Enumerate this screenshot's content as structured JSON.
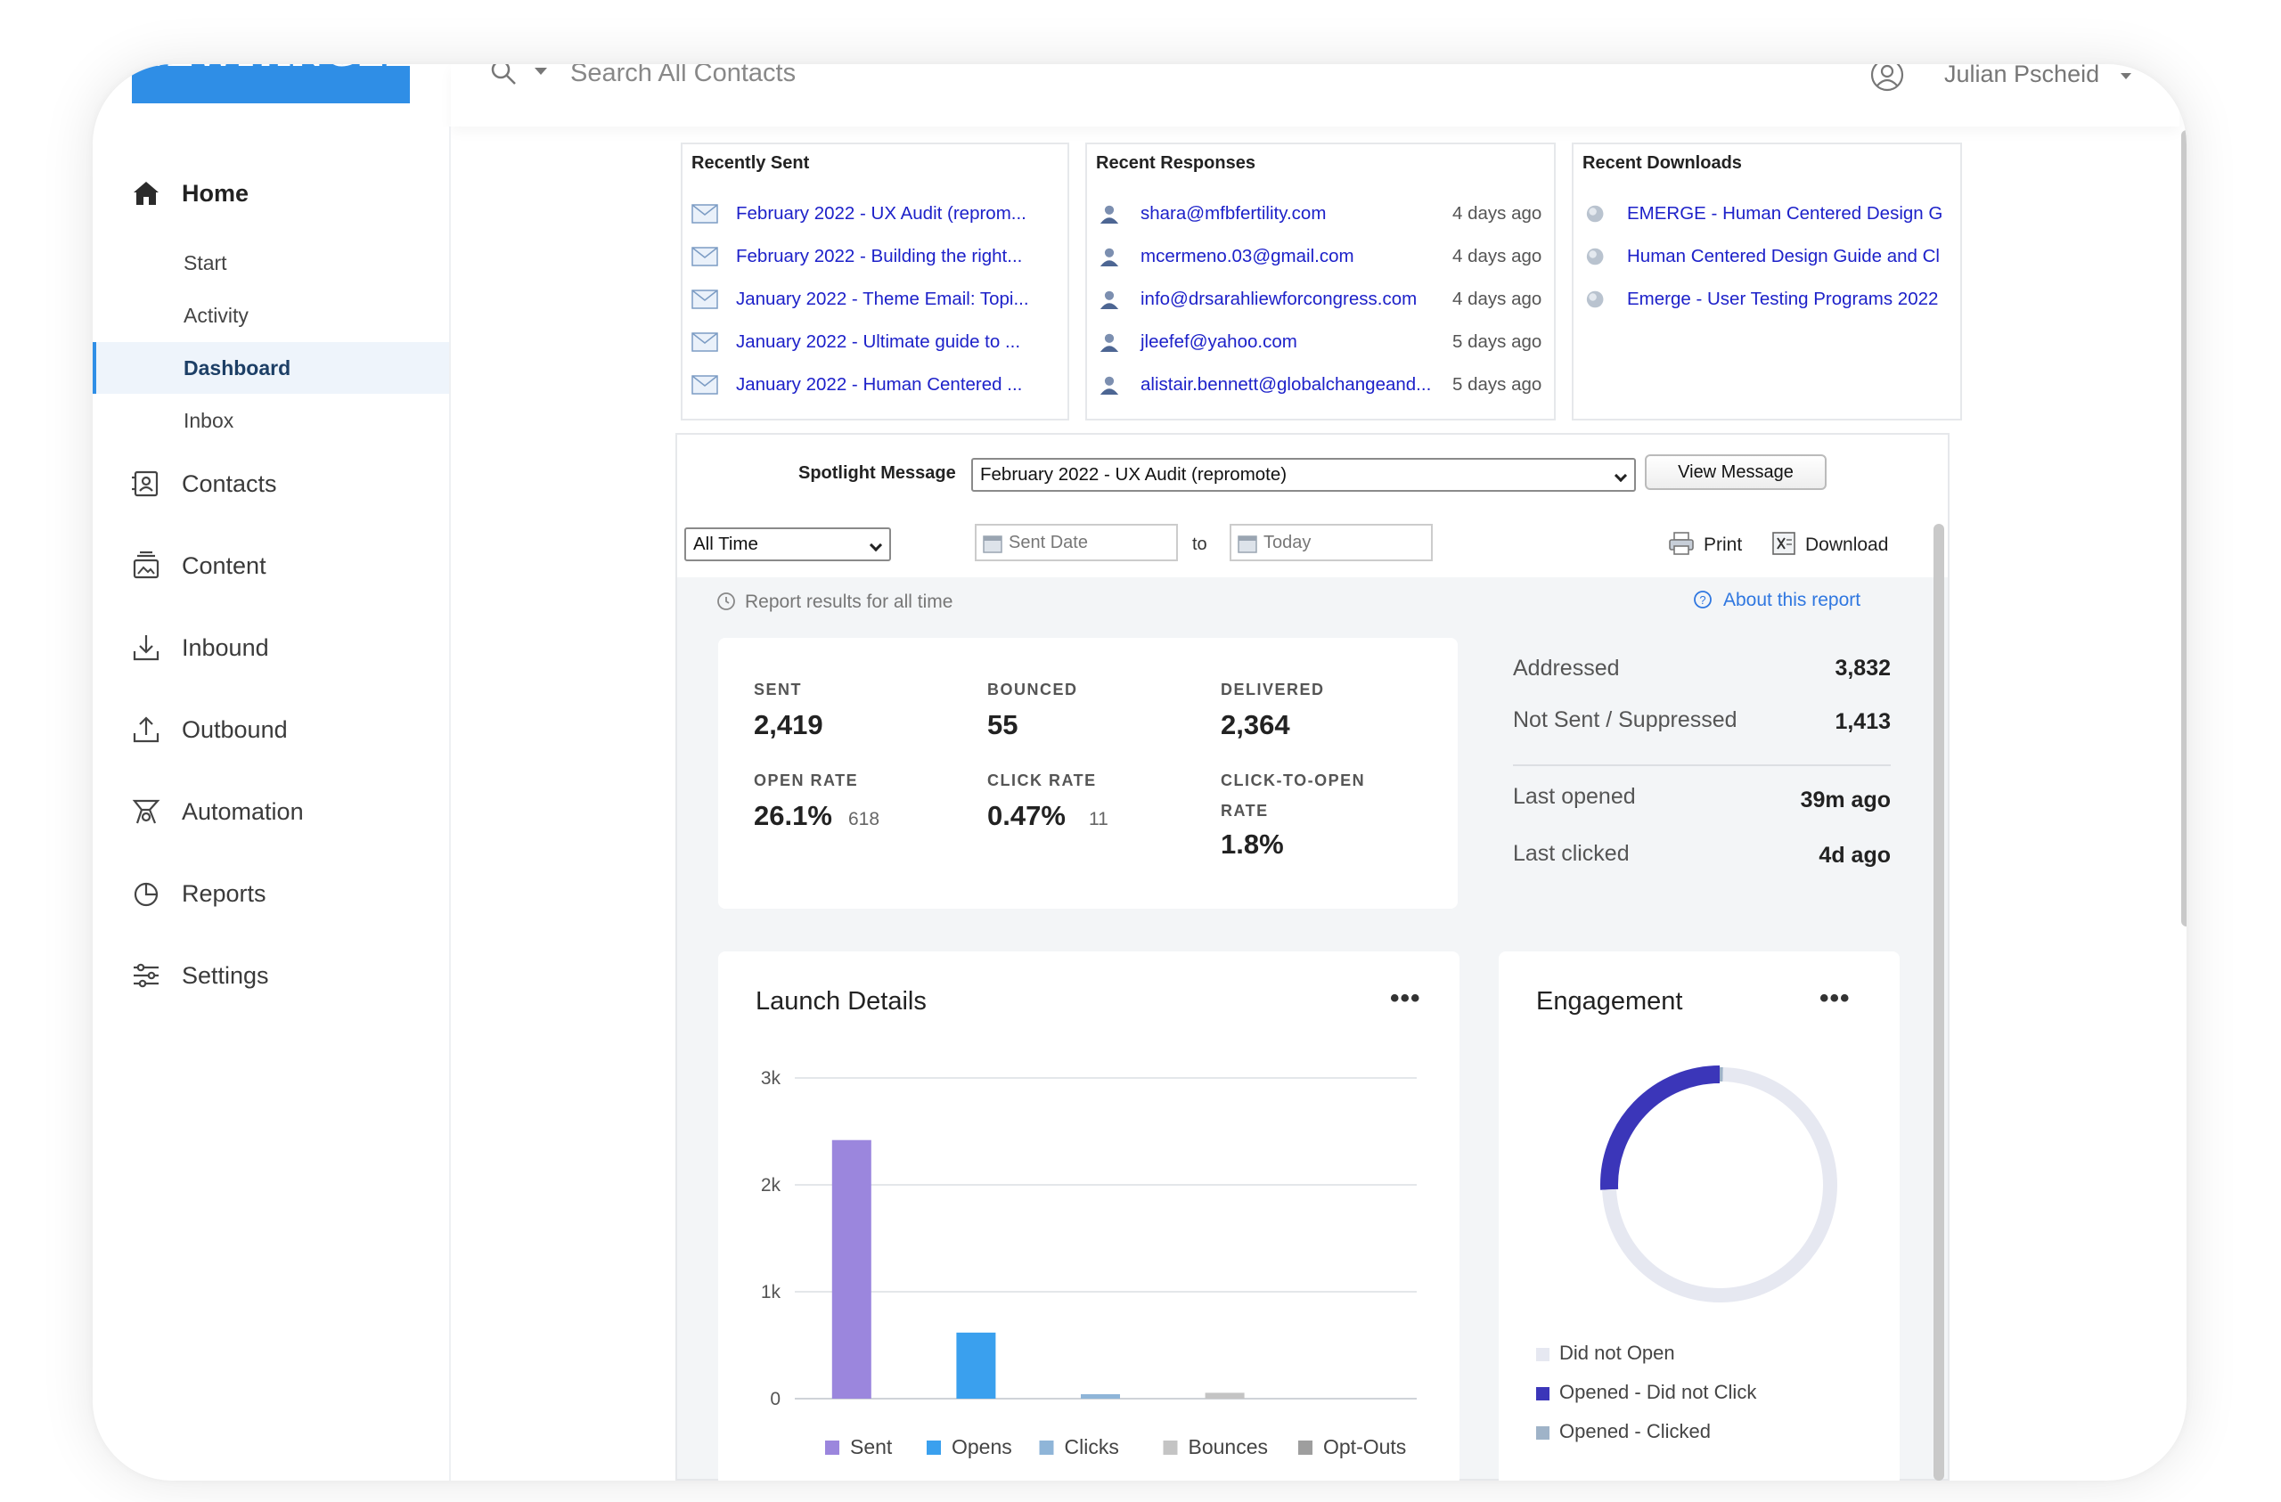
{
  "app": {
    "logo_text": "NEWFANGLED"
  },
  "search": {
    "placeholder": "Search All Contacts"
  },
  "user": {
    "name": "Julian Pscheid"
  },
  "sidebar": {
    "home": "Home",
    "sub_items": [
      "Start",
      "Activity",
      "Dashboard",
      "Inbox"
    ],
    "active": "Dashboard",
    "items": [
      "Contacts",
      "Content",
      "Inbound",
      "Outbound",
      "Automation",
      "Reports",
      "Settings"
    ]
  },
  "recently_sent": {
    "title": "Recently Sent",
    "items": [
      "February 2022 - UX Audit (reprom...",
      "February 2022 - Building the right...",
      "January 2022 - Theme Email: Topi...",
      "January 2022 - Ultimate guide to ...",
      "January 2022 - Human Centered ..."
    ]
  },
  "recent_responses": {
    "title": "Recent Responses",
    "items": [
      {
        "email": "shara@mfbfertility.com",
        "when": "4 days ago"
      },
      {
        "email": "mcermeno.03@gmail.com",
        "when": "4 days ago"
      },
      {
        "email": "info@drsarahliewforcongress.com",
        "when": "4 days ago"
      },
      {
        "email": "jleefef@yahoo.com",
        "when": "5 days ago"
      },
      {
        "email": "alistair.bennett@globalchangeand...",
        "when": "5 days ago"
      }
    ]
  },
  "recent_downloads": {
    "title": "Recent Downloads",
    "items": [
      "EMERGE - Human Centered Design G",
      "Human Centered Design Guide and Cl",
      "Emerge - User Testing Programs 2022"
    ]
  },
  "spotlight": {
    "label": "Spotlight Message",
    "selected": "February 2022 - UX Audit (repromote)",
    "view_button": "View Message"
  },
  "filters": {
    "range": "All Time",
    "from_placeholder": "Sent Date",
    "to_label": "to",
    "to_placeholder": "Today",
    "print": "Print",
    "download": "Download"
  },
  "report": {
    "note": "Report results for all time",
    "about": "About this report"
  },
  "stats": {
    "sent": {
      "label": "SENT",
      "value": "2,419"
    },
    "bounced": {
      "label": "BOUNCED",
      "value": "55"
    },
    "delivered": {
      "label": "DELIVERED",
      "value": "2,364"
    },
    "open_rate": {
      "label": "OPEN RATE",
      "value": "26.1%",
      "sub": "618"
    },
    "click_rate": {
      "label": "CLICK RATE",
      "value": "0.47%",
      "sub": "11"
    },
    "cto_rate": {
      "label_line1": "CLICK-TO-OPEN",
      "label_line2": "RATE",
      "value": "1.8%"
    }
  },
  "summary": {
    "addressed": {
      "label": "Addressed",
      "value": "3,832"
    },
    "not_sent": {
      "label": "Not Sent / Suppressed",
      "value": "1,413"
    },
    "last_opened": {
      "label": "Last opened",
      "value": "39m ago"
    },
    "last_clicked": {
      "label": "Last clicked",
      "value": "4d ago"
    }
  },
  "launch_details": {
    "title": "Launch Details",
    "menu": "•••"
  },
  "engagement": {
    "title": "Engagement",
    "menu": "•••"
  },
  "chart_data": [
    {
      "type": "bar",
      "title": "Launch Details",
      "categories": [
        "Sent",
        "Opens",
        "Clicks",
        "Bounces",
        "Opt-Outs"
      ],
      "values": [
        2419,
        618,
        11,
        55,
        0
      ],
      "colors": [
        "#9b86dd",
        "#3aa0ee",
        "#8fb5d8",
        "#c4c4c4",
        "#9e9e9e"
      ],
      "y_ticks": [
        "0",
        "1k",
        "2k",
        "3k"
      ],
      "ylim": [
        0,
        3000
      ],
      "legend": "bottom",
      "grid": true
    },
    {
      "type": "pie",
      "title": "Engagement",
      "labels": [
        "Did not Open",
        "Opened - Did not Click",
        "Opened - Clicked"
      ],
      "values": [
        1746,
        607,
        11
      ],
      "colors": [
        "#e6e8f1",
        "#3b36b9",
        "#9fb3c8"
      ],
      "legend": "bottom-left"
    }
  ],
  "colors": {
    "accent": "#2f8ee6",
    "link": "#1d21c9",
    "active_bg": "#eef4fb"
  }
}
